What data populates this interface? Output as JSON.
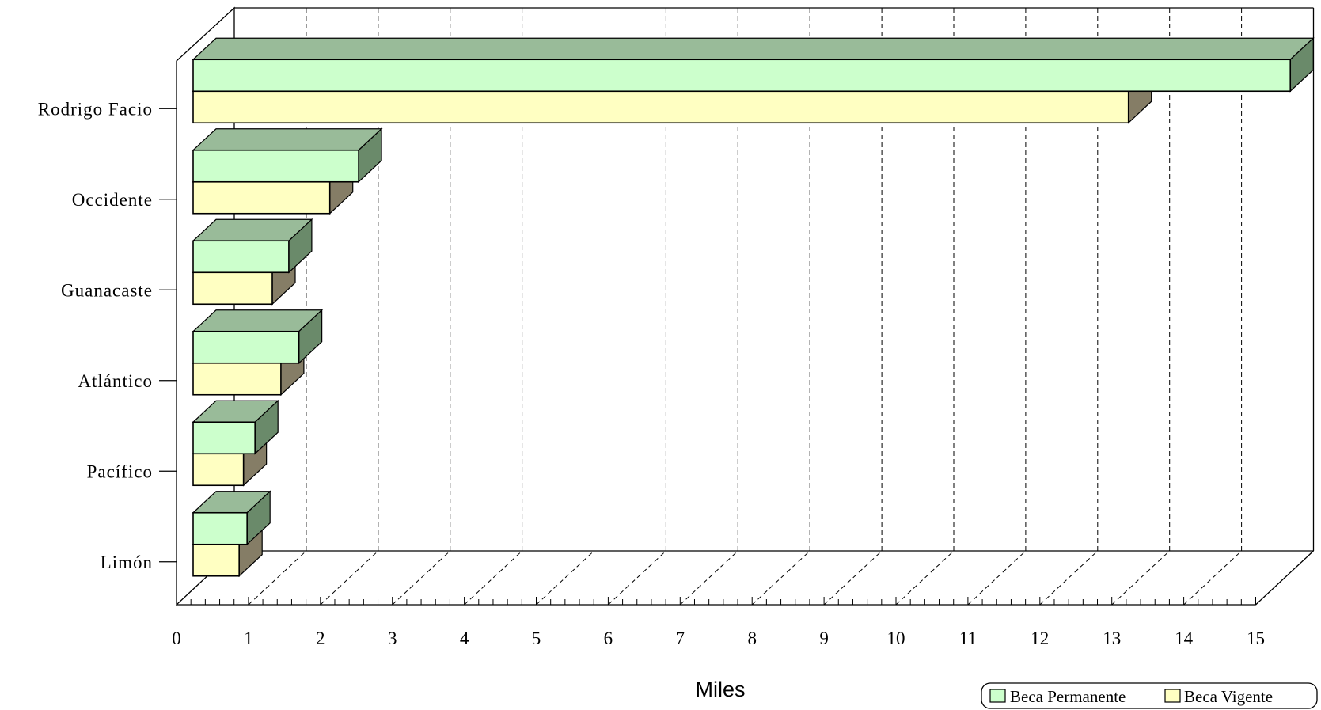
{
  "colors": {
    "permanente_front": "#ccffcc",
    "permanente_top": "#99bb99",
    "permanente_side": "#6a8a6a",
    "vigente_front": "#ffffc2",
    "vigente_top": "#bbbb90",
    "vigente_side": "#857d66"
  },
  "chart_data": {
    "type": "bar",
    "orientation": "horizontal",
    "style": "3d",
    "categories": [
      "Rodrigo Facio",
      "Occidente",
      "Guanacaste",
      "Atlántico",
      "Pacífico",
      "Limón"
    ],
    "series": [
      {
        "name": "Beca Permanente",
        "values": [
          15.25,
          2.3,
          1.33,
          1.47,
          0.86,
          0.75
        ]
      },
      {
        "name": "Beca Vigente",
        "values": [
          13.0,
          1.9,
          1.1,
          1.22,
          0.7,
          0.64
        ]
      }
    ],
    "xlabel": "Miles",
    "ylabel": "",
    "xlim": [
      0,
      15
    ],
    "xticks": [
      "0",
      "1",
      "2",
      "3",
      "4",
      "5",
      "6",
      "7",
      "8",
      "9",
      "10",
      "11",
      "12",
      "13",
      "14",
      "15"
    ],
    "grid": true,
    "legend": "bottom-right"
  }
}
